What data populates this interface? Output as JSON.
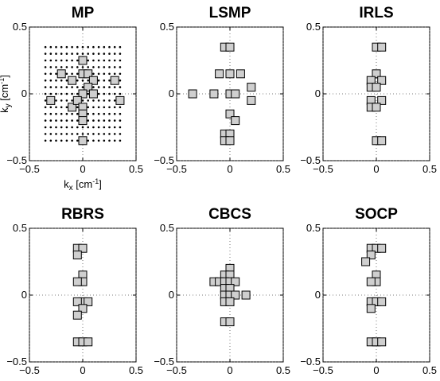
{
  "chart_data": [
    {
      "type": "scatter",
      "title": "MP",
      "xlabel": "k_x [cm^-1]",
      "ylabel": "k_y [cm^-1]",
      "xlim": [
        -0.5,
        0.5
      ],
      "ylim": [
        -0.5,
        0.5
      ],
      "xticks": [
        "−0.5",
        "0",
        "0.5"
      ],
      "yticks": [
        "0.5",
        "0",
        "−0.5"
      ],
      "grid": true,
      "candidate_grid": {
        "x_range": [
          -0.35,
          0.35
        ],
        "y_range": [
          -0.35,
          0.35
        ],
        "step": 0.05
      },
      "x": [
        -0.2,
        0.0,
        -0.1,
        0.0,
        0.05,
        0.1,
        0.3,
        0.05,
        -0.3,
        0.0,
        0.1,
        0.35,
        -0.1,
        -0.05,
        0.0,
        0.0,
        0.0,
        0.0
      ],
      "y": [
        0.15,
        0.25,
        0.1,
        0.15,
        0.15,
        0.1,
        0.1,
        0.05,
        -0.05,
        0.0,
        0.0,
        -0.05,
        -0.1,
        -0.05,
        -0.1,
        -0.15,
        -0.2,
        -0.35
      ]
    },
    {
      "type": "scatter",
      "title": "LSMP",
      "xlim": [
        -0.5,
        0.5
      ],
      "ylim": [
        -0.5,
        0.5
      ],
      "xticks": [
        "−0.5",
        "0",
        "0.5"
      ],
      "yticks": [
        "0.5",
        "0",
        "−0.5"
      ],
      "grid": true,
      "x": [
        -0.05,
        0.0,
        -0.1,
        0.0,
        0.1,
        -0.35,
        -0.15,
        0.0,
        0.05,
        0.2,
        0.2,
        0.0,
        0.05,
        -0.05,
        0.0,
        -0.05,
        0.0
      ],
      "y": [
        0.35,
        0.35,
        0.15,
        0.15,
        0.15,
        0.0,
        0.0,
        0.0,
        0.0,
        0.05,
        -0.05,
        -0.15,
        -0.2,
        -0.3,
        -0.3,
        -0.35,
        -0.35
      ]
    },
    {
      "type": "scatter",
      "title": "IRLS",
      "xlim": [
        -0.5,
        0.5
      ],
      "ylim": [
        -0.5,
        0.5
      ],
      "xticks": [
        "−0.5",
        "0",
        "0.5"
      ],
      "yticks": [
        "0.5",
        "0",
        "−0.5"
      ],
      "grid": true,
      "x": [
        0.0,
        0.05,
        0.0,
        -0.05,
        0.05,
        -0.05,
        0.0,
        -0.05,
        0.05,
        -0.05,
        0.0,
        0.0,
        0.05
      ],
      "y": [
        0.35,
        0.35,
        0.15,
        0.1,
        0.1,
        0.05,
        0.05,
        -0.05,
        -0.05,
        -0.1,
        -0.1,
        -0.35,
        -0.35
      ]
    },
    {
      "type": "scatter",
      "title": "RBRS",
      "xlim": [
        -0.5,
        0.5
      ],
      "ylim": [
        -0.5,
        0.5
      ],
      "xticks": [
        "−0.5",
        "0",
        "0.5"
      ],
      "yticks": [
        "0.5",
        "0",
        "−0.5"
      ],
      "grid": true,
      "x": [
        -0.05,
        0.0,
        -0.05,
        0.0,
        0.0,
        -0.05,
        0.0,
        0.05,
        -0.05,
        0.0,
        -0.05,
        -0.05,
        0.0,
        0.05
      ],
      "y": [
        0.35,
        0.35,
        0.3,
        0.15,
        0.1,
        0.1,
        -0.05,
        -0.05,
        -0.05,
        -0.1,
        -0.15,
        -0.35,
        -0.35,
        -0.35
      ]
    },
    {
      "type": "scatter",
      "title": "CBCS",
      "xlim": [
        -0.5,
        0.5
      ],
      "ylim": [
        -0.5,
        0.5
      ],
      "xticks": [
        "−0.5",
        "0",
        "0.5"
      ],
      "yticks": [
        "0.5",
        "0",
        "−0.5"
      ],
      "grid": true,
      "x": [
        0.0,
        -0.05,
        0.0,
        -0.15,
        -0.1,
        -0.05,
        0.0,
        0.05,
        -0.05,
        0.0,
        -0.05,
        0.0,
        0.05,
        0.15,
        -0.05,
        0.0,
        -0.05,
        0.0
      ],
      "y": [
        0.2,
        0.15,
        0.15,
        0.1,
        0.1,
        0.1,
        0.1,
        0.1,
        0.05,
        0.05,
        0.0,
        0.0,
        0.0,
        0.0,
        -0.05,
        -0.05,
        -0.2,
        -0.2
      ]
    },
    {
      "type": "scatter",
      "title": "SOCP",
      "xlim": [
        -0.5,
        0.5
      ],
      "ylim": [
        -0.5,
        0.5
      ],
      "xticks": [
        "−0.5",
        "0",
        "0.5"
      ],
      "yticks": [
        "0.5",
        "0",
        "−0.5"
      ],
      "grid": true,
      "x": [
        -0.05,
        0.0,
        0.05,
        -0.05,
        -0.1,
        0.0,
        0.0,
        -0.05,
        0.0,
        -0.05,
        0.0,
        0.05,
        -0.05,
        -0.05,
        0.0,
        0.05
      ],
      "y": [
        0.35,
        0.35,
        0.35,
        0.3,
        0.25,
        0.15,
        0.1,
        0.1,
        -0.05,
        -0.05,
        -0.05,
        -0.05,
        -0.1,
        -0.35,
        -0.35,
        -0.35
      ]
    }
  ]
}
